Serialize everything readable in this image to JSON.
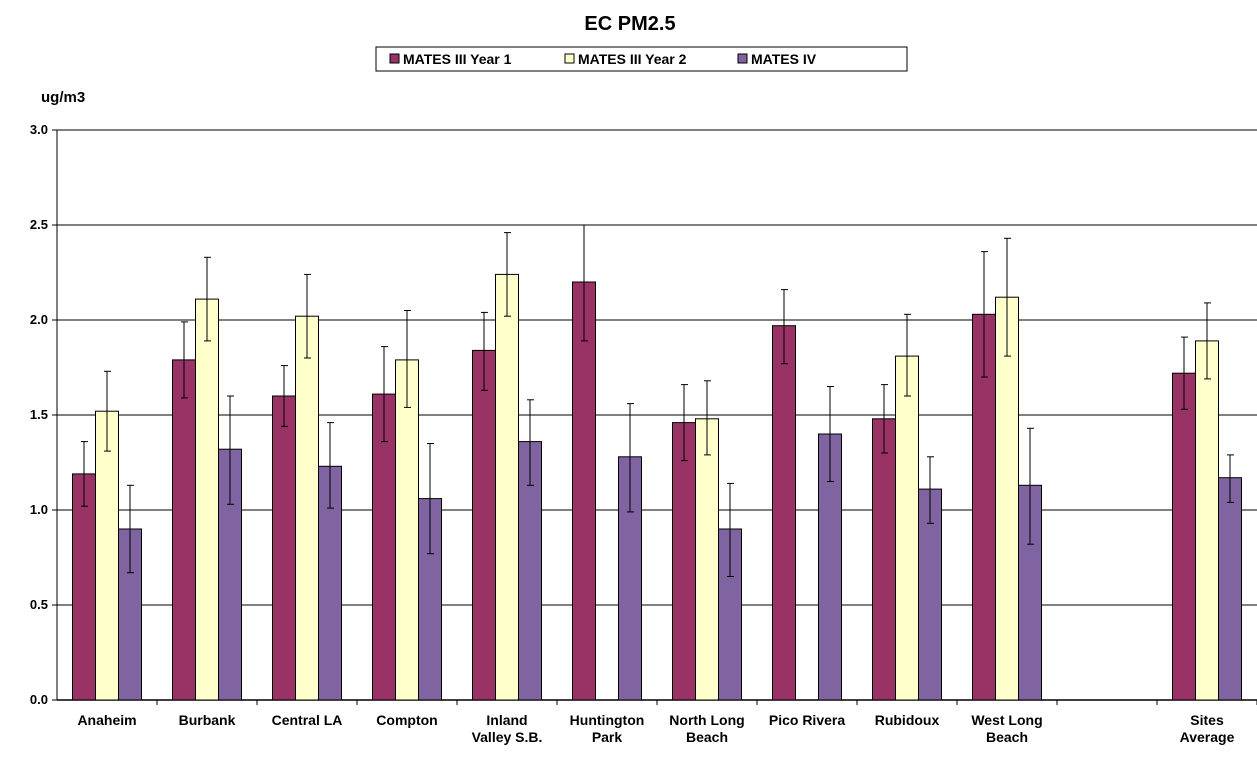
{
  "chart_data": {
    "type": "bar",
    "title": "EC PM2.5",
    "ylabel": "ug/m3",
    "xlabel": "",
    "ylim": [
      0,
      3.0
    ],
    "yticks": [
      0.0,
      0.5,
      1.0,
      1.5,
      2.0,
      2.5,
      3.0
    ],
    "ytick_labels": [
      "0.0",
      "0.5",
      "1.0",
      "1.5",
      "2.0",
      "2.5",
      "3.0"
    ],
    "grid": "horizontal",
    "legend_position": "top",
    "categories": [
      [
        "Anaheim"
      ],
      [
        "Burbank"
      ],
      [
        "Central LA"
      ],
      [
        "Compton"
      ],
      [
        "Inland",
        "Valley S.B."
      ],
      [
        "Huntington",
        "Park"
      ],
      [
        "North Long",
        "Beach"
      ],
      [
        "Pico Rivera"
      ],
      [
        "Rubidoux"
      ],
      [
        "West Long",
        "Beach"
      ],
      [],
      [
        "Sites",
        "Average"
      ]
    ],
    "series": [
      {
        "name": "MATES III Year 1",
        "color": "#993366",
        "values": [
          1.19,
          1.79,
          1.6,
          1.61,
          1.84,
          2.2,
          1.46,
          1.97,
          1.48,
          2.03,
          null,
          1.72
        ],
        "error_upper": [
          1.36,
          1.99,
          1.76,
          1.86,
          2.04,
          2.5,
          1.66,
          2.16,
          1.66,
          2.36,
          null,
          1.91
        ],
        "error_lower": [
          1.02,
          1.59,
          1.44,
          1.36,
          1.63,
          1.89,
          1.26,
          1.77,
          1.3,
          1.7,
          null,
          1.53
        ]
      },
      {
        "name": "MATES III Year 2",
        "color": "#FFFFCC",
        "values": [
          1.52,
          2.11,
          2.02,
          1.79,
          2.24,
          null,
          1.48,
          null,
          1.81,
          2.12,
          null,
          1.89
        ],
        "error_upper": [
          1.73,
          2.33,
          2.24,
          2.05,
          2.46,
          null,
          1.68,
          null,
          2.03,
          2.43,
          null,
          2.09
        ],
        "error_lower": [
          1.31,
          1.89,
          1.8,
          1.54,
          2.02,
          null,
          1.29,
          null,
          1.6,
          1.81,
          null,
          1.69
        ]
      },
      {
        "name": "MATES IV",
        "color": "#8064A2",
        "values": [
          0.9,
          1.32,
          1.23,
          1.06,
          1.36,
          1.28,
          0.9,
          1.4,
          1.11,
          1.13,
          null,
          1.17
        ],
        "error_upper": [
          1.13,
          1.6,
          1.46,
          1.35,
          1.58,
          1.56,
          1.14,
          1.65,
          1.28,
          1.43,
          null,
          1.29
        ],
        "error_lower": [
          0.67,
          1.03,
          1.01,
          0.77,
          1.13,
          0.99,
          0.65,
          1.15,
          0.93,
          0.82,
          null,
          1.04
        ]
      }
    ]
  }
}
